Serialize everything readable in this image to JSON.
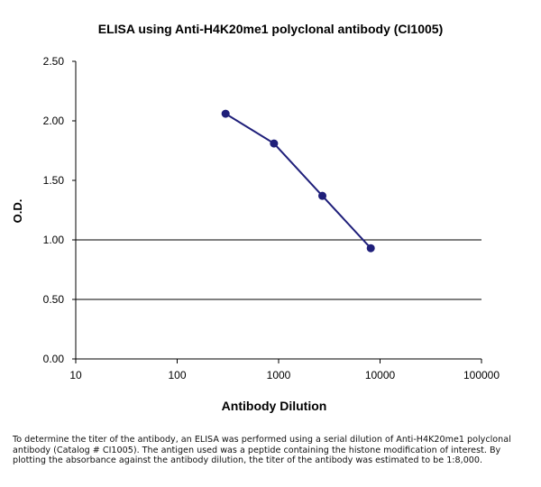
{
  "chart_data": {
    "type": "line",
    "title": "ELISA using Anti-H4K20me1 polyclonal antibody (CI1005)",
    "xlabel": "Antibody Dilution",
    "ylabel": "O.D.",
    "x_scale": "log",
    "xlim": [
      10,
      100000
    ],
    "ylim": [
      0,
      2.5
    ],
    "x_ticks": [
      10,
      100,
      1000,
      10000,
      100000
    ],
    "x_tick_labels": [
      "10",
      "100",
      "1000",
      "10000",
      "100000"
    ],
    "y_ticks": [
      0,
      0.5,
      1.0,
      1.5,
      2.0,
      2.5
    ],
    "y_tick_labels": [
      "0.00",
      "0.50",
      "1.00",
      "1.50",
      "2.00",
      "2.50"
    ],
    "gridlines_y": [
      0.5,
      1.0
    ],
    "grid": "horizontal only",
    "legend": "none",
    "series": [
      {
        "x": [
          300,
          900,
          2700,
          8100
        ],
        "y": [
          2.06,
          1.81,
          1.37,
          0.93
        ],
        "color": "#1f1f7a",
        "marker": "circle"
      }
    ]
  },
  "caption": "To determine the titer of the antibody, an ELISA was performed using a serial dilution of Anti-H4K20me1 polyclonal antibody (Catalog # CI1005). The antigen used was a peptide containing the histone modification of interest. By plotting the absorbance against the antibody dilution, the titer of the antibody was estimated to be 1:8,000."
}
